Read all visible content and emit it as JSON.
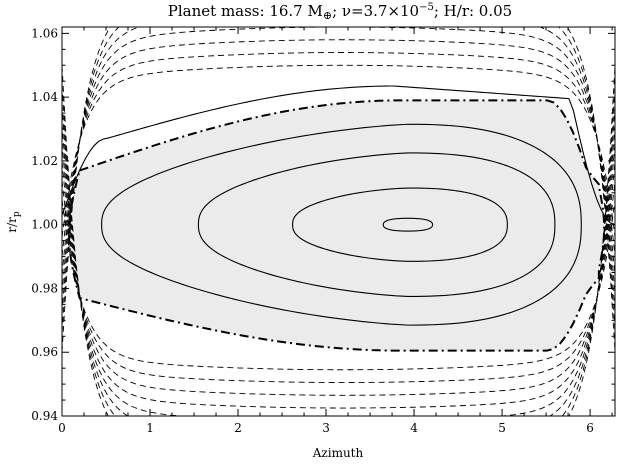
{
  "chart_data": {
    "type": "line",
    "title": {
      "prefix": "Planet mass: 16.7 M",
      "mass_unit_sub": "⊕",
      "nu_part": "; ν=3.7×10",
      "nu_exponent": "−5",
      "suffix": "; H/r: 0.05"
    },
    "xlabel": "Azimuth",
    "ylabel": {
      "base": "r/r",
      "sub": "p"
    },
    "xlim": [
      0,
      6.2832
    ],
    "ylim": [
      0.94,
      1.062
    ],
    "x_ticks": [
      0,
      1,
      2,
      3,
      4,
      5,
      6
    ],
    "y_ticks": [
      0.94,
      0.96,
      0.98,
      1.0,
      1.02,
      1.04,
      1.06
    ],
    "x_tick_labels": [
      "0",
      "1",
      "2",
      "3",
      "4",
      "5",
      "6"
    ],
    "y_tick_labels": [
      "0.94",
      "0.96",
      "0.98",
      "1.00",
      "1.02",
      "1.04",
      "1.06"
    ],
    "grid": false,
    "shaded_region_color": "#ebebeb",
    "center": {
      "x": 3.93,
      "y": 1.0
    },
    "separatrix": {
      "style": "dash-dot",
      "x_left": 0.2,
      "x_right": 6.1,
      "y_top_left": 1.017,
      "y_top_peak": 1.039,
      "y_bottom_left": 0.977,
      "y_bottom_trough": 0.9605
    },
    "closed_orbits": [
      {
        "x_left": 3.65,
        "x_right": 4.21,
        "y_top": 1.002,
        "y_bottom": 0.998
      },
      {
        "x_left": 2.62,
        "x_right": 5.06,
        "y_top": 1.0115,
        "y_bottom": 0.9885
      },
      {
        "x_left": 1.55,
        "x_right": 5.6,
        "y_top": 1.0225,
        "y_bottom": 0.9775
      },
      {
        "x_left": 0.45,
        "x_right": 5.9,
        "y_top": 1.0315,
        "y_bottom": 0.9685
      }
    ],
    "upper_solid_curve": {
      "y_left": 1.003,
      "y_top_left": 1.027,
      "y_peak": 1.0435,
      "y_right": 1.0
    },
    "upper_dashed_levels": [
      1.0465,
      1.0505,
      1.0545,
      1.0585,
      1.0625,
      1.0665,
      1.0705
    ],
    "lower_dashed_levels": [
      0.9575,
      0.9535,
      0.9495,
      0.9455,
      0.9415,
      0.9375,
      0.9335,
      0.9295
    ]
  }
}
